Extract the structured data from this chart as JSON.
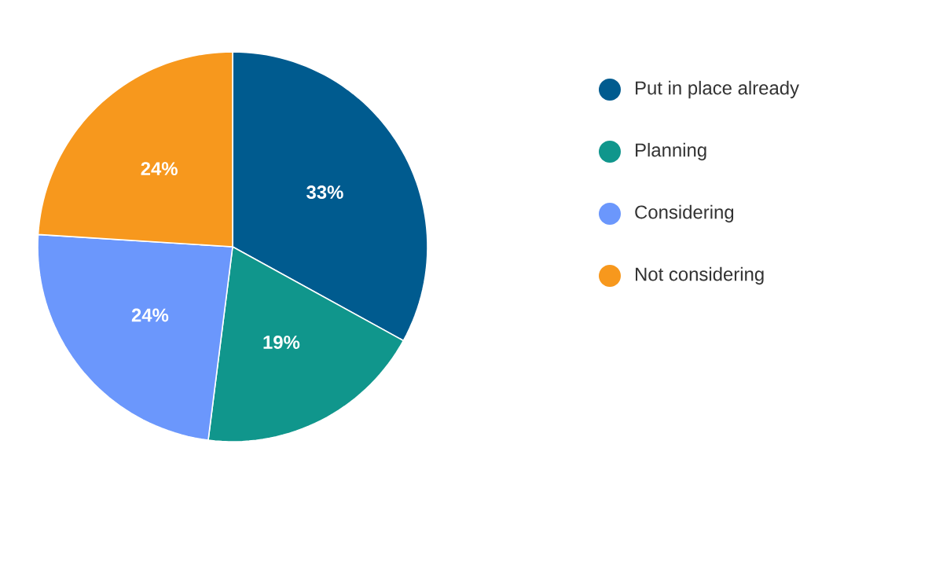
{
  "chart_data": {
    "type": "pie",
    "categories": [
      "Put in place already",
      "Planning",
      "Considering",
      "Not considering"
    ],
    "values": [
      33,
      19,
      24,
      24
    ],
    "colors": [
      "#005b8f",
      "#10968c",
      "#6b97fc",
      "#f7981d"
    ],
    "value_labels": [
      "33%",
      "19%",
      "24%",
      "24%"
    ],
    "legend": "right"
  }
}
